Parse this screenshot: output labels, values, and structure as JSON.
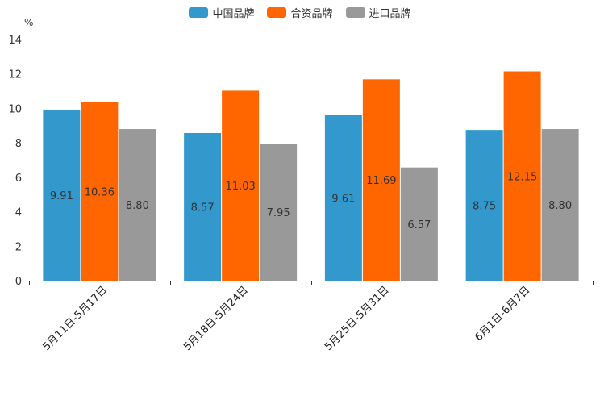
{
  "chart_data": {
    "type": "bar",
    "unit": "%",
    "categories": [
      "5月11日-5月17日",
      "5月18日-5月24日",
      "5月25日-5月31日",
      "6月1日-6月7日"
    ],
    "series": [
      {
        "name": "中国品牌",
        "color": "#3399cc",
        "values": [
          9.91,
          8.57,
          9.61,
          8.75
        ],
        "labels": [
          "9.91",
          "8.57",
          "9.61",
          "8.75"
        ]
      },
      {
        "name": "合资品牌",
        "color": "#ff6600",
        "values": [
          10.36,
          11.03,
          11.69,
          12.15
        ],
        "labels": [
          "10.36",
          "11.03",
          "11.69",
          "12.15"
        ]
      },
      {
        "name": "进口品牌",
        "color": "#999999",
        "values": [
          8.8,
          7.95,
          6.57,
          8.8
        ],
        "labels": [
          "8.80",
          "7.95",
          "6.57",
          "8.80"
        ]
      }
    ],
    "yticks": [
      "0",
      "2",
      "4",
      "6",
      "8",
      "10",
      "12",
      "14"
    ],
    "ylim": [
      0,
      14
    ],
    "grid": false,
    "legend_position": "top-center"
  }
}
